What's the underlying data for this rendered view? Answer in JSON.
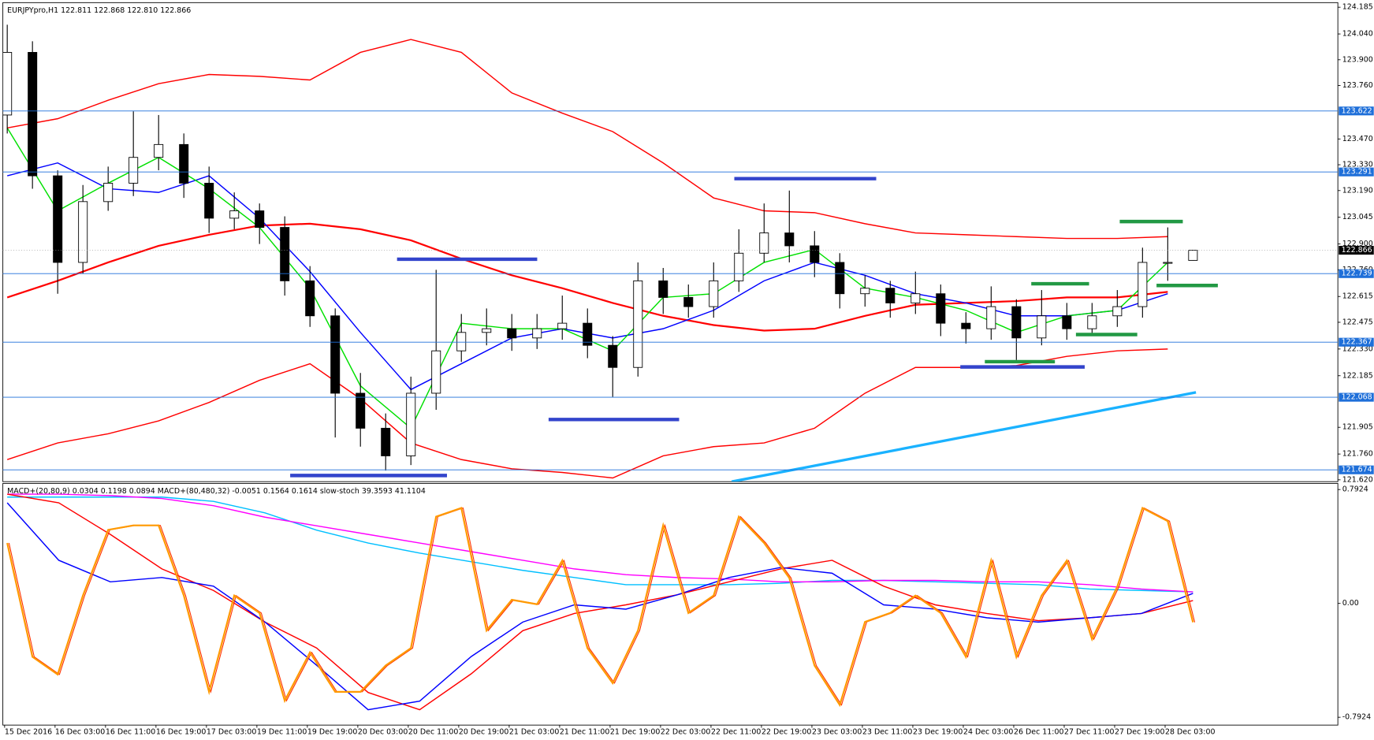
{
  "chart_data": [
    {
      "type": "candlestick",
      "title": "EURJPYpro,H1  122.811 122.868 122.810 122.866",
      "open": [
        123.6,
        123.94,
        123.27,
        122.8,
        123.13,
        123.23,
        123.37,
        123.44,
        123.23,
        123.04,
        123.08,
        122.99,
        122.7,
        122.51,
        122.09,
        121.9,
        121.75,
        122.09,
        122.32,
        122.42,
        122.44,
        122.39,
        122.44,
        122.47,
        122.35,
        122.23,
        122.7,
        122.61,
        122.56,
        122.7,
        122.85,
        122.96,
        122.89,
        122.8,
        122.63,
        122.66,
        122.58,
        122.63,
        122.47,
        122.44,
        122.56,
        122.39,
        122.51,
        122.44,
        122.51,
        122.56,
        122.8,
        122.811
      ],
      "high": [
        124.09,
        124.0,
        123.3,
        123.22,
        123.32,
        123.62,
        123.6,
        123.5,
        123.32,
        123.18,
        123.12,
        123.05,
        122.78,
        122.55,
        122.2,
        121.98,
        122.18,
        122.76,
        122.52,
        122.55,
        122.52,
        122.52,
        122.62,
        122.55,
        122.4,
        122.8,
        122.77,
        122.68,
        122.8,
        122.98,
        123.12,
        123.19,
        122.97,
        122.85,
        122.73,
        122.7,
        122.75,
        122.68,
        122.53,
        122.67,
        122.6,
        122.65,
        122.58,
        122.58,
        122.65,
        122.88,
        122.99,
        122.868
      ],
      "low": [
        123.5,
        123.2,
        122.63,
        122.74,
        123.08,
        123.16,
        123.3,
        123.15,
        122.96,
        122.98,
        122.9,
        122.62,
        122.45,
        121.85,
        121.8,
        121.67,
        121.7,
        122.0,
        122.26,
        122.35,
        122.32,
        122.33,
        122.38,
        122.28,
        122.07,
        122.18,
        122.52,
        122.5,
        122.5,
        122.64,
        122.8,
        122.8,
        122.72,
        122.55,
        122.56,
        122.5,
        122.52,
        122.4,
        122.36,
        122.38,
        122.27,
        122.35,
        122.38,
        122.4,
        122.45,
        122.5,
        122.7,
        122.81
      ],
      "close": [
        123.94,
        123.27,
        122.8,
        123.13,
        123.23,
        123.37,
        123.44,
        123.23,
        123.04,
        123.08,
        122.99,
        122.7,
        122.51,
        122.09,
        121.9,
        121.75,
        122.09,
        122.32,
        122.42,
        122.44,
        122.39,
        122.44,
        122.47,
        122.35,
        122.23,
        122.7,
        122.61,
        122.56,
        122.7,
        122.85,
        122.96,
        122.89,
        122.8,
        122.63,
        122.66,
        122.58,
        122.63,
        122.47,
        122.44,
        122.56,
        122.39,
        122.51,
        122.44,
        122.51,
        122.56,
        122.8,
        122.8,
        122.866
      ],
      "series": [
        {
          "color": "#ff0000",
          "values": [
            122.61,
            122.7,
            122.8,
            122.89,
            122.95,
            123.0,
            123.01,
            122.98,
            122.92,
            122.82,
            122.73,
            122.66,
            122.58,
            122.51,
            122.46,
            122.43,
            122.44,
            122.51,
            122.57,
            122.58,
            122.59,
            122.61,
            122.61,
            122.64
          ]
        },
        {
          "color": "#0000ff",
          "values": [
            123.27,
            123.34,
            123.2,
            123.18,
            123.27,
            123.04,
            122.75,
            122.42,
            122.11,
            122.25,
            122.39,
            122.44,
            122.39,
            122.44,
            122.54,
            122.7,
            122.8,
            122.73,
            122.63,
            122.58,
            122.51,
            122.51,
            122.54,
            122.63
          ]
        },
        {
          "color": "#00e000",
          "values": [
            123.53,
            123.08,
            123.23,
            123.37,
            123.2,
            122.99,
            122.66,
            122.13,
            121.9,
            122.47,
            122.44,
            122.44,
            122.32,
            122.61,
            122.63,
            122.8,
            122.87,
            122.66,
            122.61,
            122.54,
            122.42,
            122.51,
            122.54,
            122.8
          ]
        },
        {
          "color": "#ff0000",
          "values": [
            123.53,
            123.58,
            123.68,
            123.77,
            123.82,
            123.81,
            123.79,
            123.94,
            124.01,
            123.94,
            123.72,
            123.61,
            123.51,
            123.34,
            123.15,
            123.08,
            123.07,
            123.01,
            122.96,
            122.95,
            122.94,
            122.93,
            122.93,
            122.94
          ]
        },
        {
          "color": "#ff0000",
          "values": [
            121.73,
            121.82,
            121.87,
            121.94,
            122.04,
            122.16,
            122.25,
            122.06,
            121.82,
            121.73,
            121.68,
            121.66,
            121.63,
            121.75,
            121.8,
            121.82,
            121.9,
            122.09,
            122.23,
            122.23,
            122.24,
            122.29,
            122.32,
            122.33
          ]
        }
      ],
      "ylim": [
        121.61,
        124.21
      ],
      "yticks": [
        124.185,
        {
          "value": 124.04,
          "label": "124.040"
        },
        {
          "value": 123.9,
          "label": "123.900"
        },
        {
          "value": 123.76,
          "label": "123.760"
        },
        {
          "value": 123.47,
          "label": "123.470"
        },
        {
          "value": 123.33,
          "label": "123.330"
        },
        {
          "value": 123.19,
          "label": "123.190"
        },
        123.045,
        {
          "value": 122.9,
          "label": "122.900"
        },
        {
          "value": 122.76,
          "label": "122.760"
        },
        122.615,
        122.475,
        {
          "value": 122.33,
          "label": "122.330"
        },
        122.185,
        121.905,
        {
          "value": 121.76,
          "label": "121.760"
        },
        {
          "value": 121.62,
          "label": "121.620"
        }
      ],
      "levels": [
        123.622,
        123.291,
        122.739,
        122.367,
        122.068,
        121.674
      ],
      "current_price": 122.866,
      "x_labels": [
        "15 Dec 2016",
        "16 Dec 03:00",
        "16 Dec 11:00",
        "16 Dec 19:00",
        "17 Dec 03:00",
        "19 Dec 11:00",
        "19 Dec 19:00",
        "20 Dec 03:00",
        "20 Dec 11:00",
        "20 Dec 19:00",
        "21 Dec 03:00",
        "21 Dec 11:00",
        "21 Dec 19:00",
        "22 Dec 03:00",
        "22 Dec 11:00",
        "22 Dec 19:00",
        "23 Dec 03:00",
        "23 Dec 11:00",
        "23 Dec 19:00",
        "24 Dec 03:00",
        "26 Dec 11:00",
        "27 Dec 11:00",
        "27 Dec 19:00",
        "28 Dec 03:00"
      ]
    },
    {
      "type": "line",
      "title": "MACD+(20,80,9) 0.0304 0.1198 0.0894  MACD+(80,480,32) -0.0051 0.1564 0.1614  slow-stoch 39.3593 41.1104",
      "series": [
        {
          "color": "#00bfff",
          "values": [
            0.74,
            0.74,
            0.74,
            0.74,
            0.71,
            0.63,
            0.51,
            0.42,
            0.35,
            0.29,
            0.23,
            0.18,
            0.13,
            0.13,
            0.13,
            0.14,
            0.16,
            0.16,
            0.15,
            0.14,
            0.13,
            0.1,
            0.09,
            0.08
          ]
        },
        {
          "color": "#ff00ff",
          "values": [
            0.76,
            0.76,
            0.75,
            0.73,
            0.68,
            0.6,
            0.54,
            0.48,
            0.42,
            0.36,
            0.3,
            0.24,
            0.2,
            0.18,
            0.17,
            0.15,
            0.15,
            0.16,
            0.16,
            0.15,
            0.15,
            0.13,
            0.1,
            0.08
          ]
        },
        {
          "color": "#ff0000",
          "values": [
            0.76,
            0.7,
            0.48,
            0.24,
            0.09,
            -0.13,
            -0.31,
            -0.62,
            -0.74,
            -0.49,
            -0.19,
            -0.07,
            -0.01,
            0.06,
            0.15,
            0.24,
            0.3,
            0.12,
            -0.01,
            -0.07,
            -0.12,
            -0.1,
            -0.07,
            0.02
          ]
        },
        {
          "color": "#0000ff",
          "values": [
            0.7,
            0.3,
            0.15,
            0.18,
            0.12,
            -0.13,
            -0.43,
            -0.74,
            -0.68,
            -0.37,
            -0.13,
            -0.01,
            -0.04,
            0.06,
            0.18,
            0.25,
            0.21,
            -0.01,
            -0.04,
            -0.1,
            -0.13,
            -0.1,
            -0.07,
            0.07
          ]
        },
        {
          "color": "#ff9900",
          "axis": "y2",
          "values": [
            78.5,
            24.8,
            16.5,
            53.7,
            84.7,
            86.8,
            86.8,
            53.7,
            8.3,
            53.7,
            45.5,
            4.1,
            26.9,
            8.3,
            8.3,
            20.7,
            28.9,
            90.9,
            95.0,
            37.2,
            51.7,
            49.6,
            70.2,
            28.9,
            12.4,
            37.2,
            86.8,
            45.5,
            53.7,
            90.9,
            78.5,
            62.0,
            20.7,
            2.1,
            41.3,
            45.5,
            53.7,
            45.5,
            24.8,
            70.2,
            24.8,
            53.7,
            70.2,
            33.1,
            57.9,
            95.0,
            88.8,
            41.1
          ]
        }
      ],
      "ylim": [
        -0.847,
        0.835
      ],
      "yticks": [
        0.7924,
        {
          "value": 0,
          "label": "0.00"
        },
        -0.7924
      ],
      "y2lim": [
        -7.4,
        106.6
      ]
    }
  ]
}
